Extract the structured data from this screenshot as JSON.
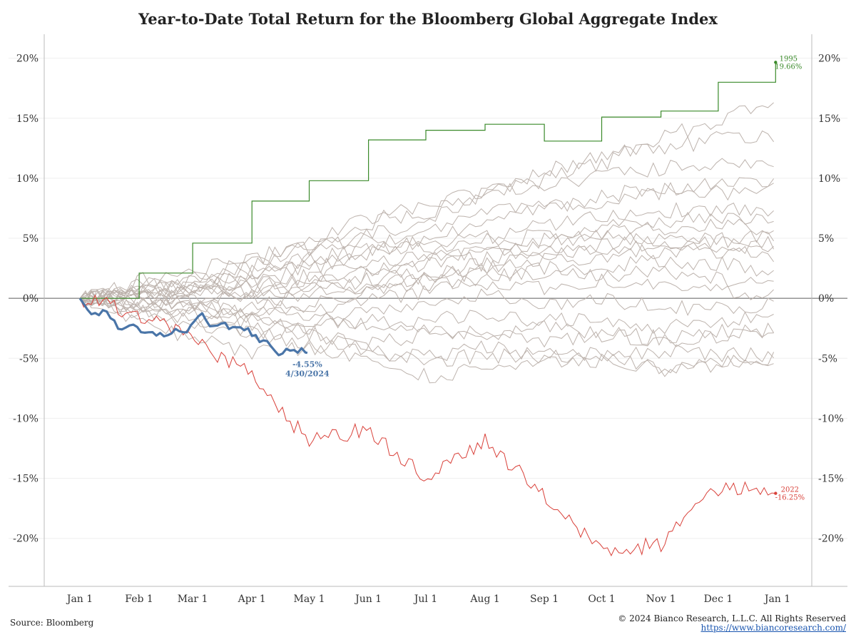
{
  "title": "Year-to-Date Total Return for the Bloomberg Global Aggregate Index",
  "source": "Source: Bloomberg",
  "copyright": "© 2024 Bianco Research, L.L.C. All Rights Reserved",
  "website": "https://www.biancoresearch.com/",
  "colors": {
    "current": "#4a75a8",
    "best": "#3a8a2a",
    "worst": "#d9413a",
    "history": "#bdb3ad",
    "zero_line": "#888888",
    "axis": "#bbbbbb"
  },
  "chart_data": {
    "type": "line",
    "title": "Year-to-Date Total Return for the Bloomberg Global Aggregate Index",
    "xlabel": "",
    "ylabel": "",
    "x_ticks": [
      "Jan 1",
      "Feb 1",
      "Mar 1",
      "Apr 1",
      "May 1",
      "Jun 1",
      "Jul 1",
      "Aug 1",
      "Sep 1",
      "Oct 1",
      "Nov 1",
      "Dec 1",
      "Jan 1"
    ],
    "y_ticks": [
      "20%",
      "15%",
      "10%",
      "5%",
      "0%",
      "-5%",
      "-10%",
      "-15%",
      "-20%"
    ],
    "ylim": [
      -24,
      22
    ],
    "grid": true,
    "y_axis_both_sides": true,
    "annotations": {
      "current": {
        "value": "-4.55%",
        "date": "4/30/2024"
      },
      "best": {
        "year": "1995",
        "value": "19.66%"
      },
      "worst": {
        "year": "2022",
        "value": "-16.25%"
      }
    },
    "series": [
      {
        "name": "2024",
        "role": "current",
        "x": [
          "Jan 1",
          "Jan 8",
          "Jan 15",
          "Jan 22",
          "Jan 29",
          "Feb 5",
          "Feb 12",
          "Feb 19",
          "Feb 26",
          "Mar 4",
          "Mar 11",
          "Mar 18",
          "Mar 25",
          "Apr 1",
          "Apr 8",
          "Apr 15",
          "Apr 22",
          "Apr 30"
        ],
        "y": [
          0,
          -1.4,
          -1.0,
          -2.4,
          -2.3,
          -2.9,
          -3.0,
          -2.7,
          -2.8,
          -1.2,
          -2.4,
          -2.3,
          -2.2,
          -2.9,
          -3.7,
          -4.6,
          -4.3,
          -4.55
        ]
      },
      {
        "name": "1995",
        "role": "best",
        "x": [
          "Jan 1",
          "Feb 1",
          "Mar 1",
          "Apr 1",
          "May 1",
          "Jun 1",
          "Jul 1",
          "Aug 1",
          "Sep 1",
          "Oct 1",
          "Nov 1",
          "Dec 1",
          "Dec 31"
        ],
        "y": [
          0,
          2.1,
          4.6,
          8.1,
          9.8,
          13.2,
          14.0,
          14.5,
          13.1,
          15.1,
          15.6,
          18.0,
          19.66
        ]
      },
      {
        "name": "2022",
        "role": "worst",
        "x": [
          "Jan 1",
          "Feb 1",
          "Mar 1",
          "Apr 1",
          "May 1",
          "Jun 1",
          "Jul 1",
          "Aug 1",
          "Sep 1",
          "Oct 1",
          "Nov 1",
          "Dec 1",
          "Dec 31"
        ],
        "y": [
          0,
          -1.3,
          -3.3,
          -6.5,
          -12.0,
          -10.9,
          -15.0,
          -11.8,
          -16.5,
          -21.0,
          -20.5,
          -15.8,
          -16.25
        ]
      },
      {
        "name": "",
        "role": "history",
        "x_end": "Dec 31",
        "y": [
          0,
          0.6,
          1.5,
          2.2,
          3.8,
          5.2,
          6.4,
          8.7,
          9.9,
          11.2,
          13.4,
          14.8,
          16.5
        ]
      },
      {
        "name": "",
        "role": "history",
        "y": [
          0,
          0.9,
          1.4,
          2.6,
          4.5,
          6.2,
          7.9,
          9.0,
          10.5,
          12.0,
          12.4,
          13.3,
          13.7
        ]
      },
      {
        "name": "",
        "role": "history",
        "y": [
          0,
          0.3,
          1.8,
          3.1,
          5.0,
          6.6,
          7.1,
          8.8,
          9.2,
          10.4,
          10.8,
          11.3,
          11.2
        ]
      },
      {
        "name": "",
        "role": "history",
        "y": [
          0,
          1.2,
          0.9,
          2.0,
          3.3,
          4.1,
          5.8,
          6.9,
          8.1,
          7.7,
          8.9,
          9.6,
          9.4
        ]
      },
      {
        "name": "",
        "role": "history",
        "y": [
          0,
          -0.2,
          0.8,
          1.9,
          2.7,
          3.6,
          4.9,
          6.2,
          7.4,
          8.5,
          9.2,
          8.8,
          9.1
        ]
      },
      {
        "name": "",
        "role": "history",
        "y": [
          0,
          0.5,
          1.1,
          1.3,
          2.4,
          3.9,
          4.6,
          5.1,
          6.0,
          6.8,
          7.3,
          7.5,
          7.2
        ]
      },
      {
        "name": "",
        "role": "history",
        "y": [
          0,
          0.8,
          0.2,
          1.5,
          1.8,
          2.9,
          3.6,
          4.8,
          5.2,
          6.1,
          6.4,
          6.7,
          6.5
        ]
      },
      {
        "name": "",
        "role": "history",
        "y": [
          0,
          -0.5,
          0.6,
          0.9,
          1.6,
          2.2,
          3.1,
          3.8,
          4.5,
          5.4,
          5.9,
          6.2,
          5.8
        ]
      },
      {
        "name": "",
        "role": "history",
        "y": [
          0,
          0.4,
          -0.3,
          0.7,
          1.2,
          1.9,
          2.8,
          3.3,
          4.0,
          4.6,
          5.2,
          5.0,
          5.3
        ]
      },
      {
        "name": "",
        "role": "history",
        "y": [
          0,
          -0.8,
          -0.4,
          0.4,
          0.9,
          1.5,
          2.0,
          2.9,
          3.6,
          4.1,
          4.4,
          4.9,
          4.7
        ]
      },
      {
        "name": "",
        "role": "history",
        "y": [
          0,
          0.2,
          0.9,
          0.3,
          1.0,
          0.8,
          1.9,
          2.4,
          3.1,
          3.5,
          4.0,
          4.3,
          4.1
        ]
      },
      {
        "name": "",
        "role": "history",
        "y": [
          0,
          1.5,
          2.2,
          3.5,
          4.1,
          5.0,
          4.2,
          3.6,
          4.8,
          5.5,
          4.9,
          3.9,
          3.5
        ]
      },
      {
        "name": "",
        "role": "history",
        "y": [
          0,
          -0.6,
          -1.2,
          -0.5,
          0.3,
          0.9,
          1.6,
          2.1,
          1.8,
          2.6,
          3.2,
          2.9,
          2.1
        ]
      },
      {
        "name": "",
        "role": "history",
        "y": [
          0,
          0.7,
          1.0,
          0.1,
          -0.6,
          0.4,
          1.1,
          1.7,
          2.5,
          1.9,
          2.4,
          1.6,
          1.2
        ]
      },
      {
        "name": "",
        "role": "history",
        "y": [
          0,
          -1.0,
          -0.2,
          -1.3,
          -0.8,
          -0.1,
          0.6,
          1.3,
          0.9,
          1.5,
          0.8,
          0.5,
          0.3
        ]
      },
      {
        "name": "",
        "role": "history",
        "y": [
          0,
          0.3,
          -0.7,
          -1.6,
          -2.0,
          -1.1,
          -0.4,
          0.2,
          -0.6,
          0.1,
          -0.9,
          -0.7,
          -0.5
        ]
      },
      {
        "name": "",
        "role": "history",
        "y": [
          0,
          -0.4,
          -1.5,
          -0.9,
          -1.7,
          -2.3,
          -1.9,
          -1.2,
          -2.0,
          -1.6,
          -2.4,
          -1.9,
          -1.3
        ]
      },
      {
        "name": "",
        "role": "history",
        "y": [
          0,
          -1.3,
          -0.9,
          -2.1,
          -2.6,
          -1.8,
          -2.7,
          -3.1,
          -2.5,
          -2.9,
          -3.3,
          -2.8,
          -2.6
        ]
      },
      {
        "name": "",
        "role": "history",
        "y": [
          0,
          -0.7,
          -1.9,
          -2.7,
          -3.2,
          -3.8,
          -3.1,
          -2.6,
          -3.5,
          -3.0,
          -3.6,
          -3.2,
          -3.1
        ]
      },
      {
        "name": "",
        "role": "history",
        "y": [
          0,
          -1.1,
          -2.4,
          -3.0,
          -3.9,
          -4.4,
          -4.9,
          -4.1,
          -4.6,
          -5.0,
          -4.4,
          -4.8,
          -4.6
        ]
      },
      {
        "name": "",
        "role": "history",
        "y": [
          0,
          -1.8,
          -3.3,
          -4.6,
          -4.2,
          -5.1,
          -6.5,
          -5.9,
          -5.4,
          -5.1,
          -5.8,
          -5.2,
          -5.1
        ]
      },
      {
        "name": "",
        "role": "history",
        "y": [
          0,
          0.5,
          -0.9,
          -1.8,
          -2.9,
          -4.2,
          -5.3,
          -4.7,
          -5.0,
          -4.6,
          -6.0,
          -5.5,
          -4.9
        ]
      }
    ]
  }
}
